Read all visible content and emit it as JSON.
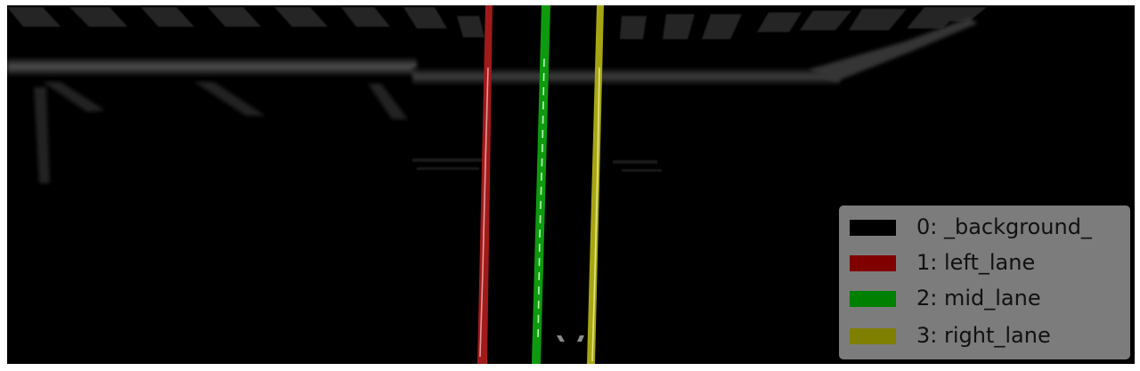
{
  "legend": {
    "entries": [
      {
        "label": "0: _background_",
        "color": "#000000"
      },
      {
        "label": "1: left_lane",
        "color": "#800000"
      },
      {
        "label": "2: mid_lane",
        "color": "#008000"
      },
      {
        "label": "3: right_lane",
        "color": "#808000"
      }
    ]
  },
  "lanes": [
    {
      "name": "left_lane",
      "color": "#a01a1a",
      "highlight": "#f0b0b0"
    },
    {
      "name": "mid_lane",
      "color": "#0e9a0e",
      "highlight": "#c8ffc8"
    },
    {
      "name": "right_lane",
      "color": "#a6a614",
      "highlight": "#f2f2a0"
    }
  ],
  "background_color": "#000000"
}
